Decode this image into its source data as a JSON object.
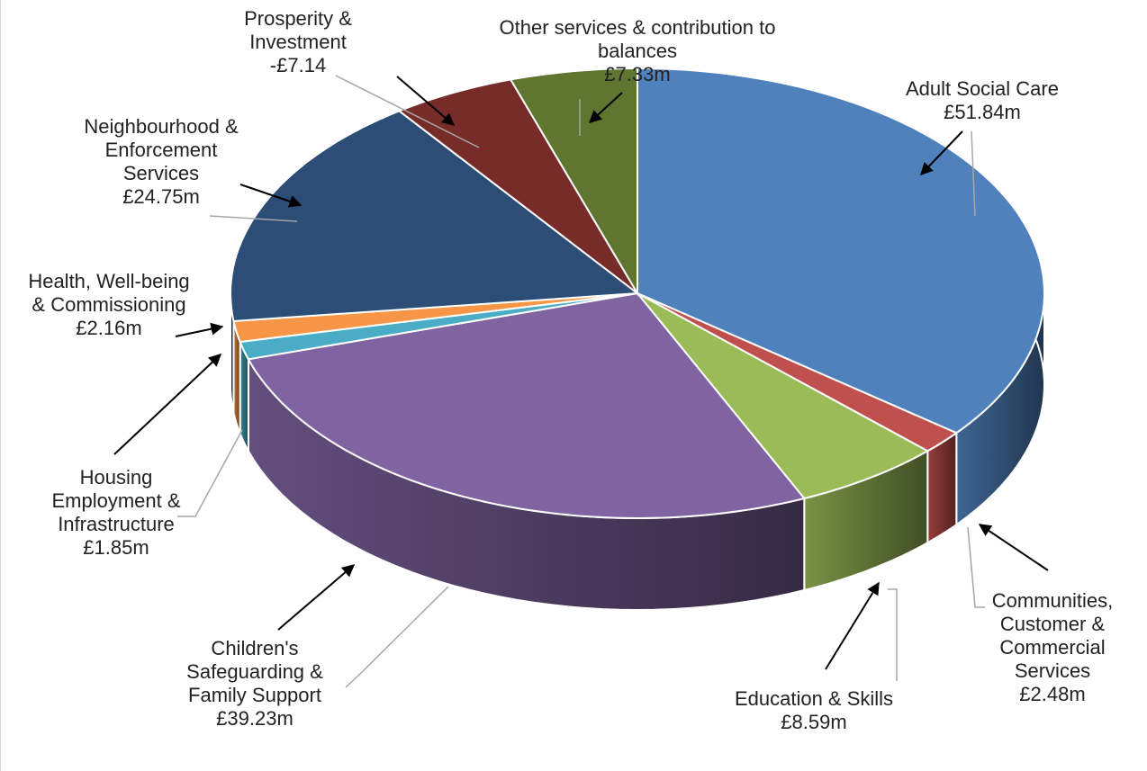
{
  "chart_data": {
    "type": "pie",
    "style": "3d-exploded-oval",
    "slices": [
      {
        "id": "adult",
        "lines": [
          "Adult Social Care",
          "£51.84m"
        ],
        "value": 51.84,
        "color": "#4f81bd"
      },
      {
        "id": "communities",
        "lines": [
          "Communities,",
          "Customer &",
          "Commercial",
          "Services",
          "£2.48m"
        ],
        "value": 2.48,
        "color": "#c0504d"
      },
      {
        "id": "education",
        "lines": [
          "Education & Skills",
          "£8.59m"
        ],
        "value": 8.59,
        "color": "#9bbb59"
      },
      {
        "id": "children",
        "lines": [
          "Children's",
          "Safeguarding &",
          "Family Support",
          "£39.23m"
        ],
        "value": 39.23,
        "color": "#8064a2"
      },
      {
        "id": "housing",
        "lines": [
          "Housing",
          "Employment &",
          "Infrastructure",
          "£1.85m"
        ],
        "value": 1.85,
        "color": "#4bacc6"
      },
      {
        "id": "health",
        "lines": [
          "Health, Well-being",
          "& Commissioning",
          "£2.16m"
        ],
        "value": 2.16,
        "color": "#f79646"
      },
      {
        "id": "neighbourhood",
        "lines": [
          "Neighbourhood &",
          "Enforcement",
          "Services",
          "£24.75m"
        ],
        "value": 24.75,
        "color": "#2c4d75"
      },
      {
        "id": "prosperity",
        "lines": [
          "Prosperity &",
          "Investment",
          "-£7.14"
        ],
        "value": 7.14,
        "color": "#772c2a"
      },
      {
        "id": "other",
        "lines": [
          "Other services & contribution to",
          "balances",
          "£7.33m"
        ],
        "value": 7.33,
        "color": "#5f7530"
      }
    ]
  }
}
